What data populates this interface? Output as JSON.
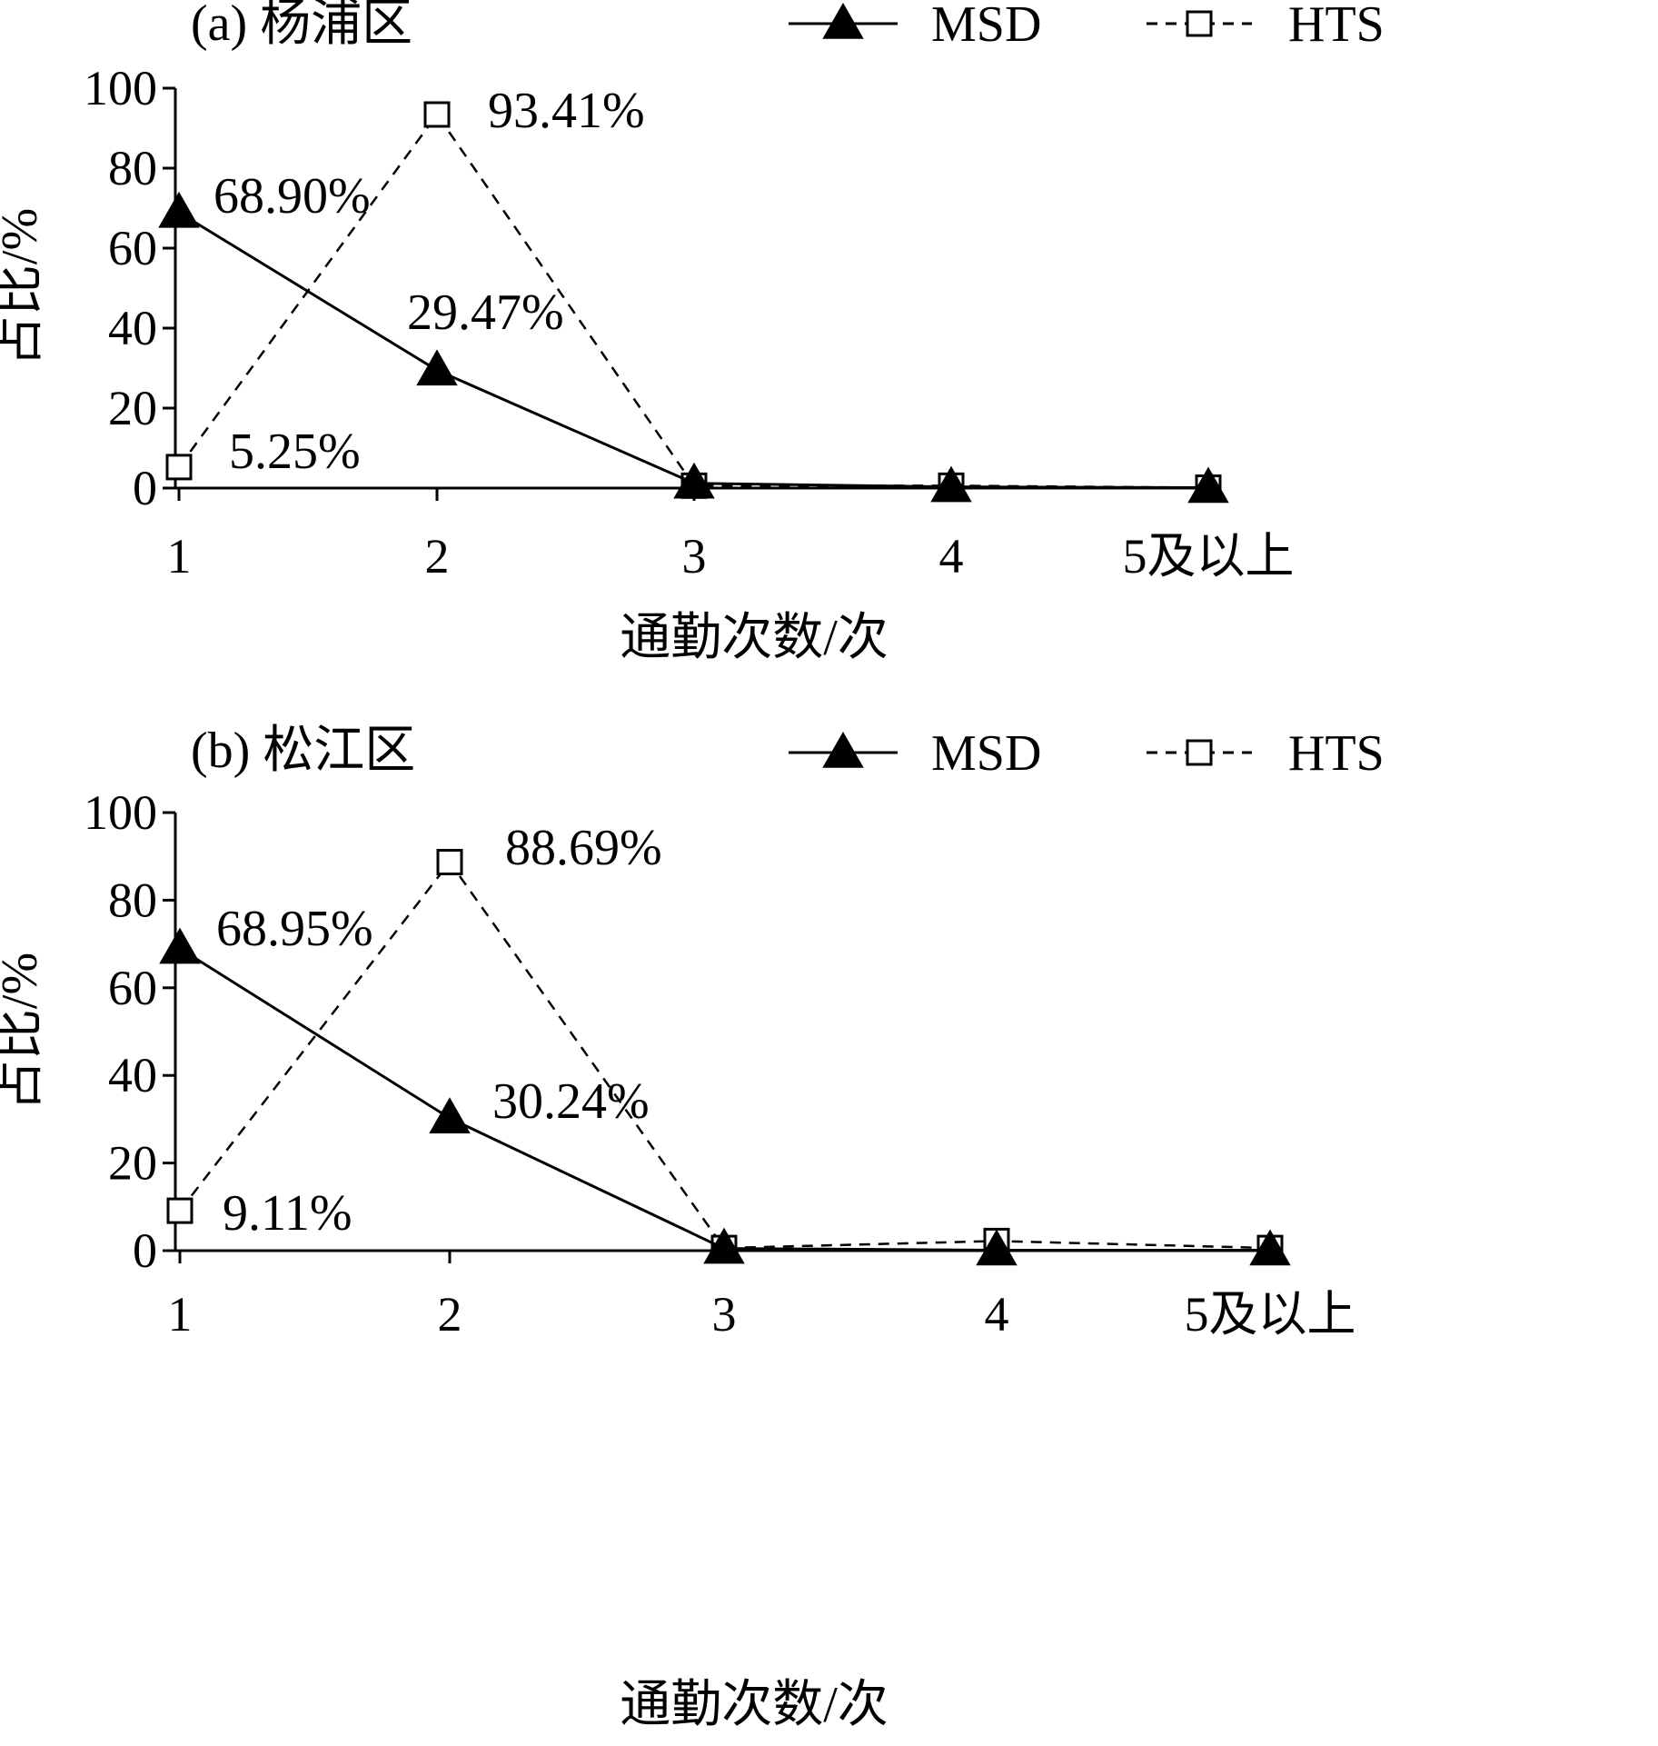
{
  "figure": {
    "background": "#ffffff",
    "ink": "#000000"
  },
  "legend": {
    "msd": {
      "label": "MSD",
      "marker": "filled-triangle",
      "line": "solid"
    },
    "hts": {
      "label": "HTS",
      "marker": "open-square",
      "line": "dashed"
    }
  },
  "chart_data": [
    {
      "type": "line",
      "title": "(a) 杨浦区",
      "xlabel": "通勤次数/次",
      "ylabel": "占比/%",
      "categories": [
        "1",
        "2",
        "3",
        "4",
        "5及以上"
      ],
      "ylim": [
        0,
        100
      ],
      "yticks": [
        0,
        20,
        40,
        60,
        80,
        100
      ],
      "grid": false,
      "legend_position": "top-right",
      "series": [
        {
          "name": "MSD",
          "values": [
            68.9,
            29.47,
            1.2,
            0.3,
            0.1
          ],
          "data_labels": [
            "68.90%",
            "29.47%",
            null,
            null,
            null
          ]
        },
        {
          "name": "HTS",
          "values": [
            5.25,
            93.41,
            0.6,
            0.6,
            0.1
          ],
          "data_labels": [
            "5.25%",
            "93.41%",
            null,
            null,
            null
          ]
        }
      ]
    },
    {
      "type": "line",
      "title": "(b) 松江区",
      "xlabel": "通勤次数/次",
      "ylabel": "占比/%",
      "categories": [
        "1",
        "2",
        "3",
        "4",
        "5及以上"
      ],
      "ylim": [
        0,
        100
      ],
      "yticks": [
        0,
        20,
        40,
        60,
        80,
        100
      ],
      "grid": false,
      "legend_position": "top-right",
      "series": [
        {
          "name": "MSD",
          "values": [
            68.95,
            30.24,
            0.5,
            0.1,
            0.1
          ],
          "data_labels": [
            "68.95%",
            "30.24%",
            null,
            null,
            null
          ]
        },
        {
          "name": "HTS",
          "values": [
            9.11,
            88.69,
            0.6,
            2.2,
            0.6
          ],
          "data_labels": [
            "9.11%",
            "88.69%",
            null,
            null,
            null
          ]
        }
      ]
    }
  ]
}
